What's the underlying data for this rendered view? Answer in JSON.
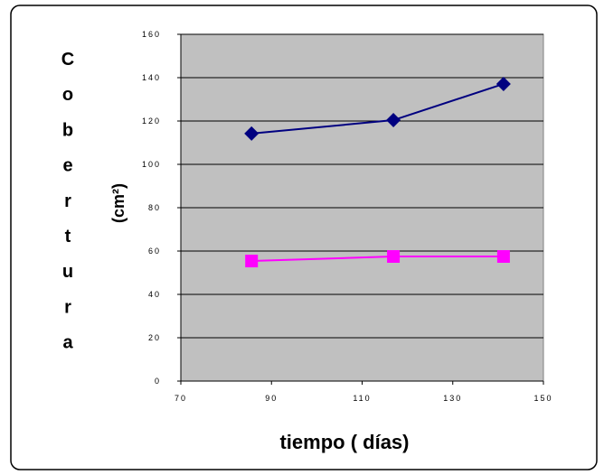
{
  "chart_data": {
    "type": "line",
    "y_label": "Cobertura",
    "y_label_unit": "(cm²)",
    "x_label": "tiempo ( días)",
    "series": [
      {
        "color": "#000080",
        "marker": "diamond",
        "x": [
          85.6,
          116.9,
          141.2
        ],
        "values": [
          114.2,
          120.4,
          137.1
        ]
      },
      {
        "color": "#ff00ff",
        "marker": "square",
        "x": [
          85.6,
          116.9,
          141.2
        ],
        "values": [
          55.4,
          57.5,
          57.5
        ]
      }
    ],
    "xlim": [
      70,
      150
    ],
    "xticks": [
      70,
      90,
      110,
      130,
      150
    ],
    "ylim": [
      0,
      160
    ],
    "yticks": [
      0,
      20,
      40,
      60,
      80,
      100,
      120,
      140,
      160
    ],
    "grid": true,
    "plot_background": "#c0c0c0"
  }
}
